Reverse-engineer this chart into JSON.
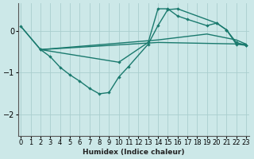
{
  "xlabel": "Humidex (Indice chaleur)",
  "bg_color": "#cce8e8",
  "line_color": "#1a7a6e",
  "grid_color": "#aacece",
  "xlim": [
    -0.3,
    23.3
  ],
  "ylim": [
    -2.5,
    0.65
  ],
  "yticks": [
    0,
    -1,
    -2
  ],
  "xticks": [
    0,
    1,
    2,
    3,
    4,
    5,
    6,
    7,
    8,
    9,
    10,
    11,
    12,
    13,
    14,
    15,
    16,
    17,
    18,
    19,
    20,
    21,
    22,
    23
  ],
  "series": [
    {
      "x": [
        0,
        2,
        3,
        4,
        5,
        6,
        7,
        8,
        9,
        10,
        11,
        13,
        14,
        15,
        16,
        20,
        21,
        22,
        23
      ],
      "y": [
        0.1,
        -0.45,
        -0.62,
        -0.87,
        -1.05,
        -1.2,
        -1.37,
        -1.5,
        -1.47,
        -1.1,
        -0.85,
        -0.32,
        0.12,
        0.5,
        0.52,
        0.18,
        0.02,
        -0.32,
        -0.35
      ],
      "marker": true
    },
    {
      "x": [
        2,
        14,
        23
      ],
      "y": [
        -0.45,
        -0.28,
        -0.32
      ],
      "marker": false
    },
    {
      "x": [
        0,
        2,
        14,
        19,
        22,
        23
      ],
      "y": [
        0.1,
        -0.45,
        -0.22,
        -0.08,
        -0.22,
        -0.32
      ],
      "marker": false
    },
    {
      "x": [
        2,
        10,
        13,
        14,
        15,
        16,
        17,
        19,
        20,
        21,
        22,
        23
      ],
      "y": [
        -0.45,
        -0.75,
        -0.28,
        0.52,
        0.52,
        0.35,
        0.27,
        0.12,
        0.18,
        0.02,
        -0.28,
        -0.35
      ],
      "marker": true
    }
  ]
}
